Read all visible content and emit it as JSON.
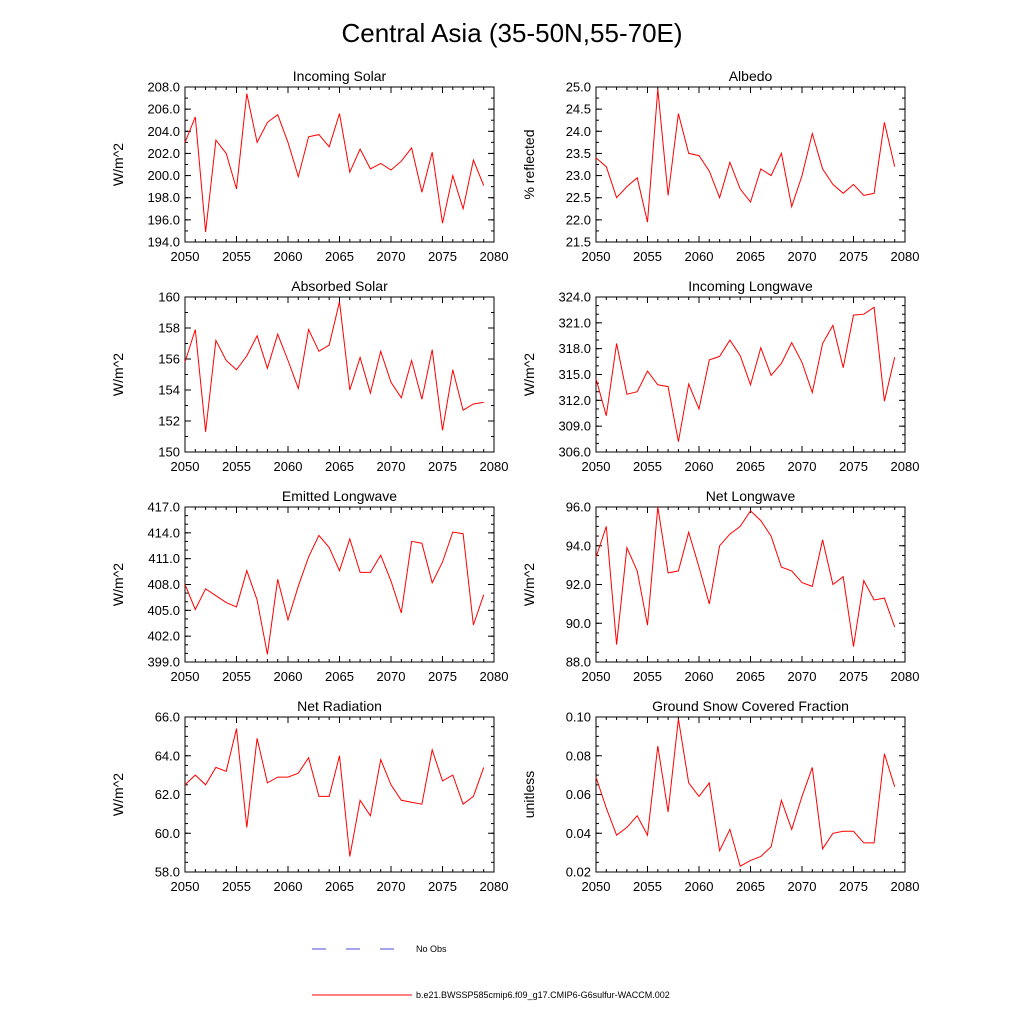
{
  "figure": {
    "title": "Central Asia (35-50N,55-70E)",
    "legend": [
      {
        "label": "No Obs",
        "color": "#4b4bd6",
        "style": "dashed"
      },
      {
        "label": "b.e21.BWSSP585cmip6.f09_g17.CMIP6-G6sulfur-WACCM.002",
        "color": "#ff0000",
        "style": "solid"
      }
    ]
  },
  "chart_data": [
    {
      "type": "line",
      "title": "Incoming Solar",
      "ylabel": "W/m^2",
      "xlim": [
        2050,
        2080
      ],
      "xticks": [
        2050,
        2055,
        2060,
        2065,
        2070,
        2075,
        2080
      ],
      "ylim": [
        194,
        208
      ],
      "yticks": [
        "194.0",
        "196.0",
        "198.0",
        "200.0",
        "202.0",
        "204.0",
        "206.0",
        "208.0"
      ],
      "yminor": 1,
      "grid": false,
      "color": "#ff0000",
      "x": [
        2050,
        2051,
        2052,
        2053,
        2054,
        2055,
        2056,
        2057,
        2058,
        2059,
        2060,
        2061,
        2062,
        2063,
        2064,
        2065,
        2066,
        2067,
        2068,
        2069,
        2070,
        2071,
        2072,
        2073,
        2074,
        2075,
        2076,
        2077,
        2078,
        2079
      ],
      "values": [
        203.0,
        205.3,
        194.9,
        203.2,
        202.0,
        198.8,
        207.4,
        203.0,
        204.8,
        205.5,
        203.0,
        199.9,
        203.5,
        203.7,
        202.6,
        205.6,
        200.3,
        202.4,
        200.6,
        201.1,
        200.5,
        201.3,
        202.5,
        198.5,
        202.1,
        195.7,
        200.0,
        197.0,
        201.4,
        199.1
      ]
    },
    {
      "type": "line",
      "title": "Albedo",
      "ylabel": "% reflected",
      "xlim": [
        2050,
        2080
      ],
      "xticks": [
        2050,
        2055,
        2060,
        2065,
        2070,
        2075,
        2080
      ],
      "ylim": [
        21.5,
        25.0
      ],
      "yticks": [
        "21.5",
        "22.0",
        "22.5",
        "23.0",
        "23.5",
        "24.0",
        "24.5",
        "25.0"
      ],
      "yminor": 0.25,
      "grid": false,
      "color": "#ff0000",
      "x": [
        2050,
        2051,
        2052,
        2053,
        2054,
        2055,
        2056,
        2057,
        2058,
        2059,
        2060,
        2061,
        2062,
        2063,
        2064,
        2065,
        2066,
        2067,
        2068,
        2069,
        2070,
        2071,
        2072,
        2073,
        2074,
        2075,
        2076,
        2077,
        2078,
        2079
      ],
      "values": [
        23.4,
        23.2,
        22.5,
        22.75,
        22.95,
        21.95,
        24.95,
        22.55,
        24.4,
        23.5,
        23.45,
        23.1,
        22.5,
        23.3,
        22.7,
        22.4,
        23.15,
        23.0,
        23.5,
        22.3,
        23.0,
        23.95,
        23.15,
        22.8,
        22.6,
        22.8,
        22.55,
        22.6,
        24.2,
        23.2
      ]
    },
    {
      "type": "line",
      "title": "Absorbed Solar",
      "ylabel": "W/m^2",
      "xlim": [
        2050,
        2080
      ],
      "xticks": [
        2050,
        2055,
        2060,
        2065,
        2070,
        2075,
        2080
      ],
      "ylim": [
        150,
        160
      ],
      "yticks": [
        "150",
        "152",
        "154",
        "156",
        "158",
        "160"
      ],
      "yminor": 1,
      "grid": false,
      "color": "#ff0000",
      "x": [
        2050,
        2051,
        2052,
        2053,
        2054,
        2055,
        2056,
        2057,
        2058,
        2059,
        2060,
        2061,
        2062,
        2063,
        2064,
        2065,
        2066,
        2067,
        2068,
        2069,
        2070,
        2071,
        2072,
        2073,
        2074,
        2075,
        2076,
        2077,
        2078,
        2079
      ],
      "values": [
        155.8,
        157.9,
        151.3,
        157.2,
        155.9,
        155.3,
        156.2,
        157.5,
        155.4,
        157.6,
        155.9,
        154.1,
        157.9,
        156.5,
        156.9,
        159.7,
        154.0,
        156.1,
        153.8,
        156.5,
        154.5,
        153.5,
        155.9,
        153.4,
        156.6,
        151.4,
        155.3,
        152.7,
        153.1,
        153.2
      ]
    },
    {
      "type": "line",
      "title": "Incoming Longwave",
      "ylabel": "W/m^2",
      "xlim": [
        2050,
        2080
      ],
      "xticks": [
        2050,
        2055,
        2060,
        2065,
        2070,
        2075,
        2080
      ],
      "ylim": [
        306,
        324
      ],
      "yticks": [
        "306.0",
        "309.0",
        "312.0",
        "315.0",
        "318.0",
        "321.0",
        "324.0"
      ],
      "yminor": 1,
      "grid": false,
      "color": "#ff0000",
      "x": [
        2050,
        2051,
        2052,
        2053,
        2054,
        2055,
        2056,
        2057,
        2058,
        2059,
        2060,
        2061,
        2062,
        2063,
        2064,
        2065,
        2066,
        2067,
        2068,
        2069,
        2070,
        2071,
        2072,
        2073,
        2074,
        2075,
        2076,
        2077,
        2078,
        2079
      ],
      "values": [
        314.5,
        310.2,
        318.6,
        312.7,
        313.0,
        315.4,
        313.8,
        313.6,
        307.2,
        313.9,
        311.0,
        316.7,
        317.1,
        319.0,
        317.2,
        313.8,
        318.1,
        314.9,
        316.3,
        318.7,
        316.4,
        312.9,
        318.6,
        320.7,
        315.8,
        321.9,
        322.0,
        322.8,
        311.9,
        317.0
      ]
    },
    {
      "type": "line",
      "title": "Emitted Longwave",
      "ylabel": "W/m^2",
      "xlim": [
        2050,
        2080
      ],
      "xticks": [
        2050,
        2055,
        2060,
        2065,
        2070,
        2075,
        2080
      ],
      "ylim": [
        399,
        417
      ],
      "yticks": [
        "399.0",
        "402.0",
        "405.0",
        "408.0",
        "411.0",
        "414.0",
        "417.0"
      ],
      "yminor": 1,
      "grid": false,
      "color": "#ff0000",
      "x": [
        2050,
        2051,
        2052,
        2053,
        2054,
        2055,
        2056,
        2057,
        2058,
        2059,
        2060,
        2061,
        2062,
        2063,
        2064,
        2065,
        2066,
        2067,
        2068,
        2069,
        2070,
        2071,
        2072,
        2073,
        2074,
        2075,
        2076,
        2077,
        2078,
        2079
      ],
      "values": [
        408.0,
        405.1,
        407.5,
        406.7,
        405.9,
        405.4,
        409.6,
        406.2,
        399.9,
        408.6,
        403.9,
        407.8,
        411.2,
        413.7,
        412.3,
        409.6,
        413.3,
        409.4,
        409.4,
        411.4,
        408.4,
        404.7,
        413.0,
        412.8,
        408.2,
        410.6,
        414.1,
        413.9,
        403.3,
        406.8
      ]
    },
    {
      "type": "line",
      "title": "Net Longwave",
      "ylabel": "W/m^2",
      "xlim": [
        2050,
        2080
      ],
      "xticks": [
        2050,
        2055,
        2060,
        2065,
        2070,
        2075,
        2080
      ],
      "ylim": [
        88,
        96
      ],
      "yticks": [
        "88.0",
        "90.0",
        "92.0",
        "94.0",
        "96.0"
      ],
      "yminor": 0.5,
      "grid": false,
      "color": "#ff0000",
      "x": [
        2050,
        2051,
        2052,
        2053,
        2054,
        2055,
        2056,
        2057,
        2058,
        2059,
        2060,
        2061,
        2062,
        2063,
        2064,
        2065,
        2066,
        2067,
        2068,
        2069,
        2070,
        2071,
        2072,
        2073,
        2074,
        2075,
        2076,
        2077,
        2078,
        2079
      ],
      "values": [
        93.4,
        95.0,
        88.9,
        93.9,
        92.7,
        89.9,
        96.0,
        92.6,
        92.7,
        94.7,
        92.9,
        91.0,
        94.0,
        94.6,
        95.0,
        95.8,
        95.3,
        94.5,
        92.9,
        92.7,
        92.1,
        91.9,
        94.3,
        92.0,
        92.4,
        88.8,
        92.2,
        91.2,
        91.3,
        89.8
      ]
    },
    {
      "type": "line",
      "title": "Net Radiation",
      "ylabel": "W/m^2",
      "xlim": [
        2050,
        2080
      ],
      "xticks": [
        2050,
        2055,
        2060,
        2065,
        2070,
        2075,
        2080
      ],
      "ylim": [
        58,
        66
      ],
      "yticks": [
        "58.0",
        "60.0",
        "62.0",
        "64.0",
        "66.0"
      ],
      "yminor": 0.5,
      "grid": false,
      "color": "#ff0000",
      "x": [
        2050,
        2051,
        2052,
        2053,
        2054,
        2055,
        2056,
        2057,
        2058,
        2059,
        2060,
        2061,
        2062,
        2063,
        2064,
        2065,
        2066,
        2067,
        2068,
        2069,
        2070,
        2071,
        2072,
        2073,
        2074,
        2075,
        2076,
        2077,
        2078,
        2079
      ],
      "values": [
        62.5,
        63.0,
        62.5,
        63.4,
        63.2,
        65.4,
        60.3,
        64.9,
        62.6,
        62.9,
        62.9,
        63.1,
        63.9,
        61.9,
        61.9,
        64.0,
        58.8,
        61.7,
        60.9,
        63.8,
        62.5,
        61.7,
        61.6,
        61.5,
        64.3,
        62.7,
        63.0,
        61.5,
        61.9,
        63.4
      ]
    },
    {
      "type": "line",
      "title": "Ground Snow Covered Fraction",
      "ylabel": "unitless",
      "xlim": [
        2050,
        2080
      ],
      "xticks": [
        2050,
        2055,
        2060,
        2065,
        2070,
        2075,
        2080
      ],
      "ylim": [
        0.02,
        0.1
      ],
      "yticks": [
        "0.02",
        "0.04",
        "0.06",
        "0.08",
        "0.10"
      ],
      "yminor": 0.005,
      "grid": false,
      "color": "#ff0000",
      "x": [
        2050,
        2051,
        2052,
        2053,
        2054,
        2055,
        2056,
        2057,
        2058,
        2059,
        2060,
        2061,
        2062,
        2063,
        2064,
        2065,
        2066,
        2067,
        2068,
        2069,
        2070,
        2071,
        2072,
        2073,
        2074,
        2075,
        2076,
        2077,
        2078,
        2079
      ],
      "values": [
        0.069,
        0.053,
        0.039,
        0.043,
        0.049,
        0.039,
        0.085,
        0.051,
        0.099,
        0.066,
        0.059,
        0.066,
        0.031,
        0.042,
        0.023,
        0.026,
        0.028,
        0.033,
        0.057,
        0.042,
        0.059,
        0.074,
        0.032,
        0.04,
        0.041,
        0.041,
        0.035,
        0.035,
        0.081,
        0.064
      ]
    }
  ]
}
